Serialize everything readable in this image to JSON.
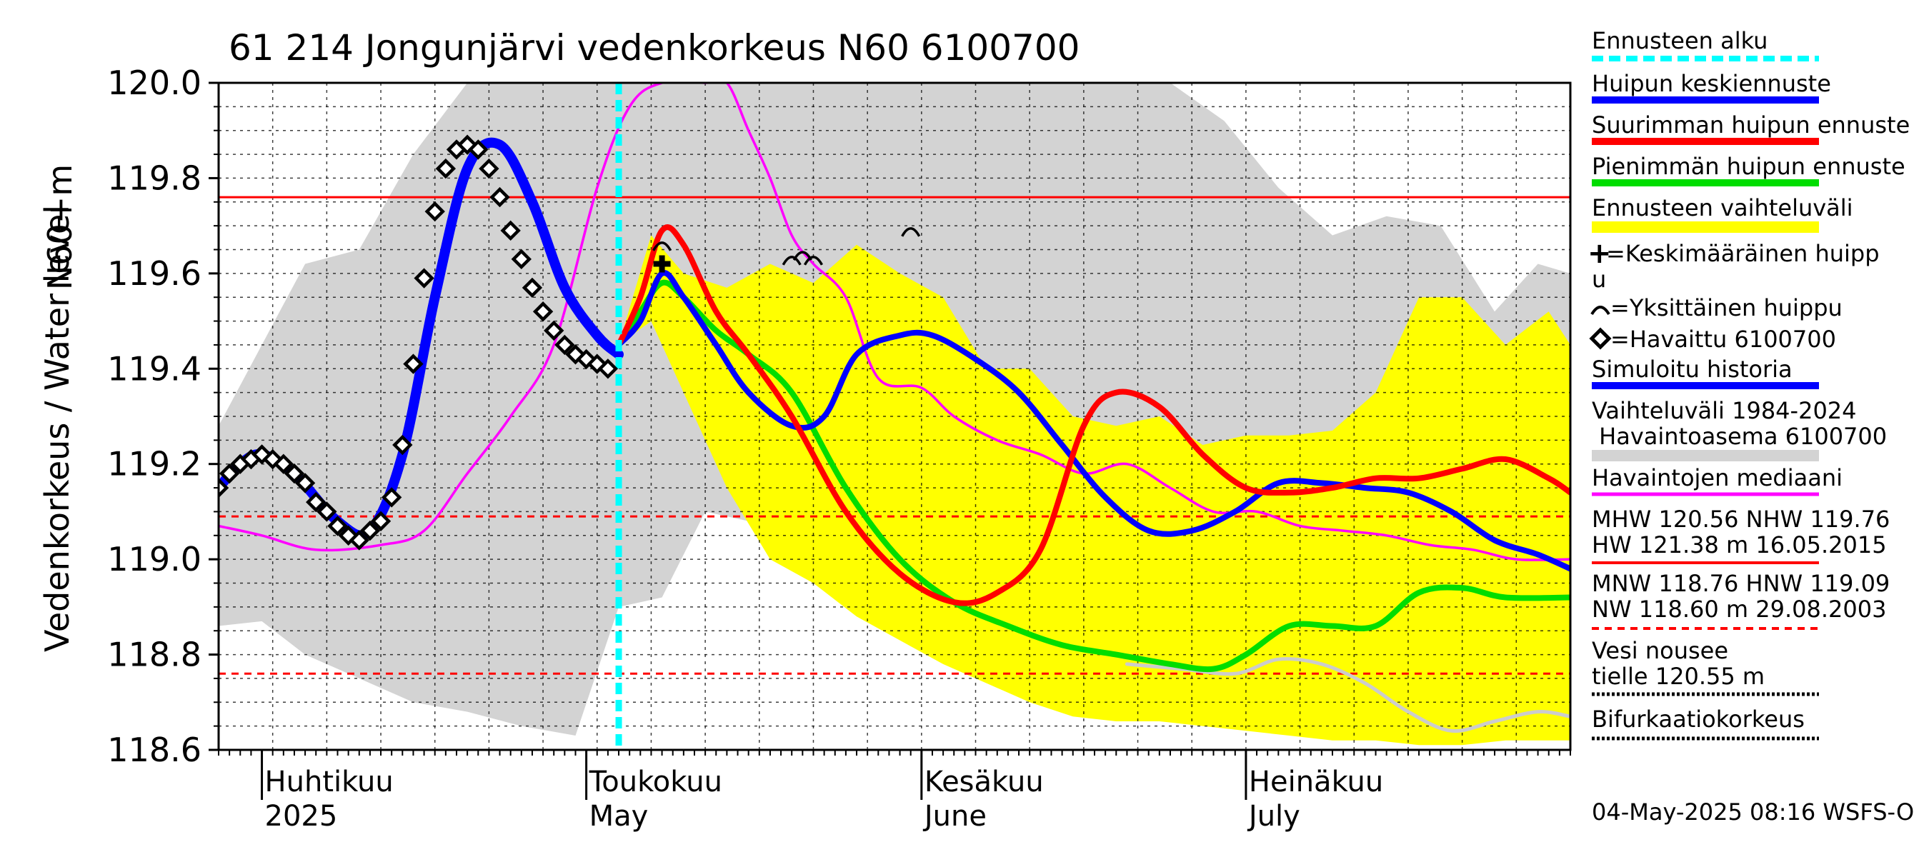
{
  "chart_data": {
    "type": "line",
    "title": "61 214 Jongunjärvi vedenkorkeus N60 6100700",
    "ylabel_main": "Vedenkorkeus / Water level",
    "ylabel_unit": "N60+m",
    "ylim": [
      118.6,
      120.0
    ],
    "y_ticks": [
      "118.6",
      "118.8",
      "119.0",
      "119.2",
      "119.4",
      "119.6",
      "119.8",
      "120.0"
    ],
    "x_range_days": [
      "2025-03-28",
      "2025-07-31"
    ],
    "months": [
      {
        "fi": "Huhtikuu",
        "en": "2025",
        "start": "2025-04-01"
      },
      {
        "fi": "Toukokuu",
        "en": "May",
        "start": "2025-05-01"
      },
      {
        "fi": "Kesäkuu",
        "en": "June",
        "start": "2025-06-01"
      },
      {
        "fi": "Heinäkuu",
        "en": "July",
        "start": "2025-07-01"
      }
    ],
    "forecast_start": "2025-05-04",
    "reference_lines": [
      {
        "name": "NHW",
        "value": 119.76,
        "color": "#ff0000",
        "style": "solid"
      },
      {
        "name": "HNW",
        "value": 119.09,
        "color": "#ff0000",
        "style": "dashed"
      },
      {
        "name": "MNW",
        "value": 118.76,
        "color": "#ff0000",
        "style": "dashed"
      }
    ],
    "series": [
      {
        "name": "Vaihteluväli 1984-2024",
        "kind": "band",
        "color": "#d3d3d3",
        "x": [
          "03-28",
          "04-01",
          "04-05",
          "04-10",
          "04-15",
          "04-20",
          "04-25",
          "04-30",
          "05-04",
          "05-08",
          "05-12",
          "05-16",
          "05-20",
          "05-25",
          "05-30",
          "06-04",
          "06-09",
          "06-14",
          "06-19",
          "06-24",
          "06-29",
          "07-04",
          "07-09",
          "07-14",
          "07-19",
          "07-24",
          "07-28",
          "07-31"
        ],
        "upper": [
          119.28,
          119.45,
          119.62,
          119.65,
          119.85,
          120.0,
          120.0,
          120.0,
          120.0,
          120.0,
          120.0,
          120.0,
          120.0,
          120.0,
          120.0,
          120.0,
          120.0,
          120.0,
          120.0,
          120.0,
          119.92,
          119.78,
          119.68,
          119.72,
          119.7,
          119.52,
          119.62,
          119.6
        ],
        "lower": [
          118.86,
          118.87,
          118.8,
          118.75,
          118.7,
          118.68,
          118.65,
          118.63,
          118.9,
          118.92,
          119.1,
          119.08,
          119.0,
          118.95,
          118.9,
          118.85,
          118.83,
          118.8,
          118.77,
          118.74,
          118.7,
          118.68,
          118.66,
          118.64,
          118.62,
          118.63,
          118.64,
          118.65
        ]
      },
      {
        "name": "Ennusteen vaihteluväli",
        "kind": "band",
        "color": "#ffff00",
        "x": [
          "05-04",
          "05-07",
          "05-10",
          "05-14",
          "05-18",
          "05-22",
          "05-26",
          "05-30",
          "06-03",
          "06-07",
          "06-11",
          "06-15",
          "06-19",
          "06-23",
          "06-27",
          "07-01",
          "07-05",
          "07-09",
          "07-13",
          "07-17",
          "07-21",
          "07-25",
          "07-29",
          "07-31"
        ],
        "upper": [
          119.45,
          119.68,
          119.6,
          119.57,
          119.62,
          119.58,
          119.66,
          119.6,
          119.55,
          119.4,
          119.4,
          119.3,
          119.28,
          119.3,
          119.24,
          119.26,
          119.26,
          119.27,
          119.35,
          119.55,
          119.55,
          119.45,
          119.52,
          119.45
        ],
        "lower": [
          119.45,
          119.5,
          119.35,
          119.15,
          119.0,
          118.95,
          118.88,
          118.83,
          118.78,
          118.74,
          118.7,
          118.67,
          118.66,
          118.66,
          118.65,
          118.64,
          118.63,
          118.62,
          118.62,
          118.61,
          118.61,
          118.62,
          118.62,
          118.62
        ]
      },
      {
        "name": "Havaintojen mediaani",
        "color": "#ff00ff",
        "x": [
          "03-28",
          "04-01",
          "04-06",
          "04-12",
          "04-16",
          "04-20",
          "04-24",
          "04-28",
          "05-02",
          "05-05",
          "05-08",
          "05-12",
          "05-14",
          "05-16",
          "05-18",
          "05-20",
          "05-22",
          "05-25",
          "05-28",
          "06-01",
          "06-04",
          "06-08",
          "06-12",
          "06-16",
          "06-20",
          "06-24",
          "06-28",
          "07-02",
          "07-06",
          "07-10",
          "07-14",
          "07-18",
          "07-22",
          "07-26",
          "07-31"
        ],
        "y": [
          119.07,
          119.05,
          119.02,
          119.03,
          119.06,
          119.18,
          119.3,
          119.45,
          119.78,
          119.95,
          120.0,
          120.0,
          120.0,
          119.9,
          119.8,
          119.68,
          119.62,
          119.55,
          119.38,
          119.36,
          119.3,
          119.25,
          119.22,
          119.18,
          119.2,
          119.15,
          119.1,
          119.1,
          119.07,
          119.06,
          119.05,
          119.03,
          119.02,
          119.0,
          119.0
        ]
      },
      {
        "name": "Simuloitu historia",
        "color": "#0000ff",
        "x": [
          "03-28",
          "03-30",
          "04-01",
          "04-04",
          "04-08",
          "04-11",
          "04-14",
          "04-17",
          "04-20",
          "04-23",
          "04-26",
          "04-29",
          "05-02",
          "05-04"
        ],
        "y": [
          119.15,
          119.2,
          119.22,
          119.18,
          119.08,
          119.06,
          119.22,
          119.55,
          119.82,
          119.87,
          119.75,
          119.57,
          119.47,
          119.43
        ]
      },
      {
        "name": "Huipun keskiennuste",
        "color": "#0000ff",
        "x": [
          "05-04",
          "05-06",
          "05-08",
          "05-10",
          "05-13",
          "05-16",
          "05-20",
          "05-23",
          "05-26",
          "05-30",
          "06-02",
          "06-06",
          "06-10",
          "06-14",
          "06-18",
          "06-22",
          "06-26",
          "06-30",
          "07-04",
          "07-08",
          "07-12",
          "07-16",
          "07-20",
          "07-24",
          "07-28",
          "07-31"
        ],
        "y": [
          119.45,
          119.5,
          119.6,
          119.55,
          119.45,
          119.35,
          119.28,
          119.3,
          119.43,
          119.47,
          119.47,
          119.42,
          119.35,
          119.24,
          119.13,
          119.06,
          119.06,
          119.1,
          119.16,
          119.16,
          119.15,
          119.14,
          119.1,
          119.04,
          119.01,
          118.98
        ]
      },
      {
        "name": "Suurimman huipun ennuste",
        "color": "#ff0000",
        "x": [
          "05-04",
          "05-06",
          "05-08",
          "05-10",
          "05-13",
          "05-16",
          "05-20",
          "05-25",
          "05-30",
          "06-04",
          "06-08",
          "06-12",
          "06-16",
          "06-19",
          "06-23",
          "06-27",
          "07-01",
          "07-05",
          "07-09",
          "07-13",
          "07-17",
          "07-21",
          "07-25",
          "07-29",
          "07-31"
        ],
        "y": [
          119.45,
          119.55,
          119.69,
          119.66,
          119.52,
          119.43,
          119.3,
          119.1,
          118.97,
          118.91,
          118.93,
          119.02,
          119.28,
          119.35,
          119.32,
          119.22,
          119.15,
          119.14,
          119.15,
          119.17,
          119.17,
          119.19,
          119.21,
          119.17,
          119.14
        ]
      },
      {
        "name": "Pienimmän huipun ennuste",
        "color": "#00dd00",
        "x": [
          "05-04",
          "05-06",
          "05-08",
          "05-10",
          "05-13",
          "05-16",
          "05-20",
          "05-25",
          "05-30",
          "06-04",
          "06-09",
          "06-14",
          "06-19",
          "06-24",
          "06-28",
          "07-01",
          "07-05",
          "07-09",
          "07-13",
          "07-17",
          "07-21",
          "07-25",
          "07-31"
        ],
        "y": [
          119.45,
          119.52,
          119.58,
          119.55,
          119.48,
          119.43,
          119.35,
          119.15,
          119.0,
          118.91,
          118.86,
          118.82,
          118.8,
          118.78,
          118.77,
          118.8,
          118.86,
          118.86,
          118.86,
          118.93,
          118.94,
          118.92,
          118.92
        ]
      },
      {
        "name": "Pienin (harmaa)",
        "color": "#cccccc",
        "x": [
          "06-20",
          "06-25",
          "06-30",
          "07-04",
          "07-08",
          "07-12",
          "07-16",
          "07-20",
          "07-24",
          "07-28",
          "07-31"
        ],
        "y": [
          118.78,
          118.77,
          118.76,
          118.79,
          118.78,
          118.74,
          118.68,
          118.64,
          118.66,
          118.68,
          118.67
        ]
      }
    ],
    "observed": {
      "name": "Havaittu 6100700",
      "x": [
        "03-28",
        "03-29",
        "03-30",
        "03-31",
        "04-01",
        "04-02",
        "04-03",
        "04-04",
        "04-05",
        "04-06",
        "04-07",
        "04-08",
        "04-09",
        "04-10",
        "04-11",
        "04-12",
        "04-13",
        "04-14",
        "04-15",
        "04-16",
        "04-17",
        "04-18",
        "04-19",
        "04-20",
        "04-21",
        "04-22",
        "04-23",
        "04-24",
        "04-25",
        "04-26",
        "04-27",
        "04-28",
        "04-29",
        "04-30",
        "05-01",
        "05-02",
        "05-03"
      ],
      "y": [
        119.15,
        119.18,
        119.2,
        119.21,
        119.22,
        119.21,
        119.2,
        119.18,
        119.16,
        119.12,
        119.1,
        119.07,
        119.05,
        119.04,
        119.06,
        119.08,
        119.13,
        119.24,
        119.41,
        119.59,
        119.73,
        119.82,
        119.86,
        119.87,
        119.86,
        119.82,
        119.76,
        119.69,
        119.63,
        119.57,
        119.52,
        119.48,
        119.45,
        119.43,
        119.42,
        119.41,
        119.4
      ]
    },
    "peaks": [
      {
        "date": "05-08",
        "value": 119.66
      },
      {
        "date": "05-20",
        "value": 119.63
      },
      {
        "date": "05-21",
        "value": 119.64
      },
      {
        "date": "05-22",
        "value": 119.63
      },
      {
        "date": "05-31",
        "value": 119.69
      }
    ],
    "mean_peak": {
      "date": "05-08",
      "value": 119.62
    }
  },
  "legend": {
    "items": [
      {
        "label": "Ennusteen alku",
        "color": "#00ffff",
        "style": "dashed"
      },
      {
        "label": "Huipun keskiennuste",
        "color": "#0000ff",
        "style": "solid"
      },
      {
        "label": "Suurimman huipun ennuste",
        "color": "#ff0000",
        "style": "solid"
      },
      {
        "label": "Pienimmän huipun ennuste",
        "color": "#00dd00",
        "style": "solid"
      },
      {
        "label": "Ennusteen vaihteluväli",
        "color": "#ffff00",
        "style": "solid"
      }
    ],
    "mean_peak_label_1": "=Keskimääräinen huipp",
    "mean_peak_label_2": "u",
    "single_peak_label": "=Yksittäinen huippu",
    "observed_label": "=Havaittu 6100700",
    "simulated_label": "Simuloitu historia",
    "range_label_1": "Vaihteluväli 1984-2024",
    "range_label_2": " Havaintoasema 6100700",
    "median_label": "Havaintojen mediaani",
    "stats_1": "MHW 120.56 NHW 119.76",
    "stats_2": "HW 121.38 m 16.05.2015",
    "stats_3": "MNW 118.76 HNW 119.09",
    "stats_4": "NW 118.60 m 29.08.2003",
    "road_1": "Vesi nousee",
    "road_2": "tielle 120.55 m",
    "bifurcation": "Bifurkaatiokorkeus",
    "timestamp": "04-May-2025 08:16 WSFS-O"
  },
  "colors": {
    "band_history": "#d3d3d3",
    "band_forecast": "#ffff00",
    "median": "#ff00ff",
    "mean": "#0000ff",
    "max": "#ff0000",
    "min": "#00dd00",
    "forecast_start": "#00ffff"
  }
}
